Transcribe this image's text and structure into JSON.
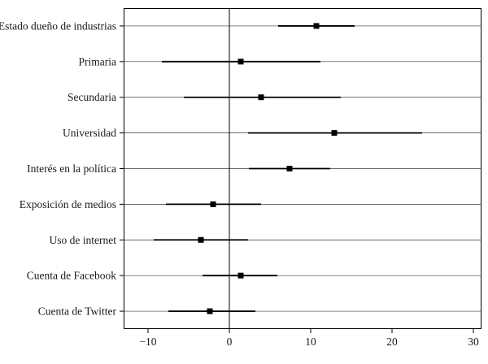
{
  "chart_data": {
    "type": "scatter",
    "subtype": "coefficient-plot-with-ci",
    "title": "",
    "xlabel": "",
    "ylabel": "",
    "xlim": [
      -13,
      31
    ],
    "grid": "horizontal-category-lines",
    "legend": "none",
    "ref_line_x": 0,
    "categories": [
      "Estado dueño de industrias",
      "Primaria",
      "Secundaria",
      "Universidad",
      "Interés en la política",
      "Exposición de medios",
      "Uso de internet",
      "Cuenta de Facebook",
      "Cuenta de Twitter"
    ],
    "points": [
      {
        "label": "Estado dueño de industrias",
        "estimate": 10.7,
        "ci_low": 6.0,
        "ci_high": 15.4
      },
      {
        "label": "Primaria",
        "estimate": 1.4,
        "ci_low": -8.3,
        "ci_high": 11.2
      },
      {
        "label": "Secundaria",
        "estimate": 3.9,
        "ci_low": -5.6,
        "ci_high": 13.7
      },
      {
        "label": "Universidad",
        "estimate": 12.9,
        "ci_low": 2.3,
        "ci_high": 23.7
      },
      {
        "label": "Interés en la política",
        "estimate": 7.4,
        "ci_low": 2.4,
        "ci_high": 12.4
      },
      {
        "label": "Exposición de medios",
        "estimate": -2.0,
        "ci_low": -7.8,
        "ci_high": 3.9
      },
      {
        "label": "Uso de internet",
        "estimate": -3.5,
        "ci_low": -9.3,
        "ci_high": 2.3
      },
      {
        "label": "Cuenta de Facebook",
        "estimate": 1.4,
        "ci_low": -3.3,
        "ci_high": 5.9
      },
      {
        "label": "Cuenta de Twitter",
        "estimate": -2.4,
        "ci_low": -7.5,
        "ci_high": 3.2
      }
    ],
    "x_ticks": [
      {
        "value": -10,
        "label": "−10"
      },
      {
        "value": 0,
        "label": "0"
      },
      {
        "value": 10,
        "label": "10"
      },
      {
        "value": 20,
        "label": "20"
      },
      {
        "value": 30,
        "label": "30"
      }
    ],
    "marker": "filled-square",
    "colors": {
      "frame": "#000000",
      "row_line": "#3a3a3a",
      "ref_line": "#000000",
      "ci": "#000000",
      "marker": "#000000",
      "text": "#1a1a1a",
      "background": "#ffffff"
    }
  }
}
